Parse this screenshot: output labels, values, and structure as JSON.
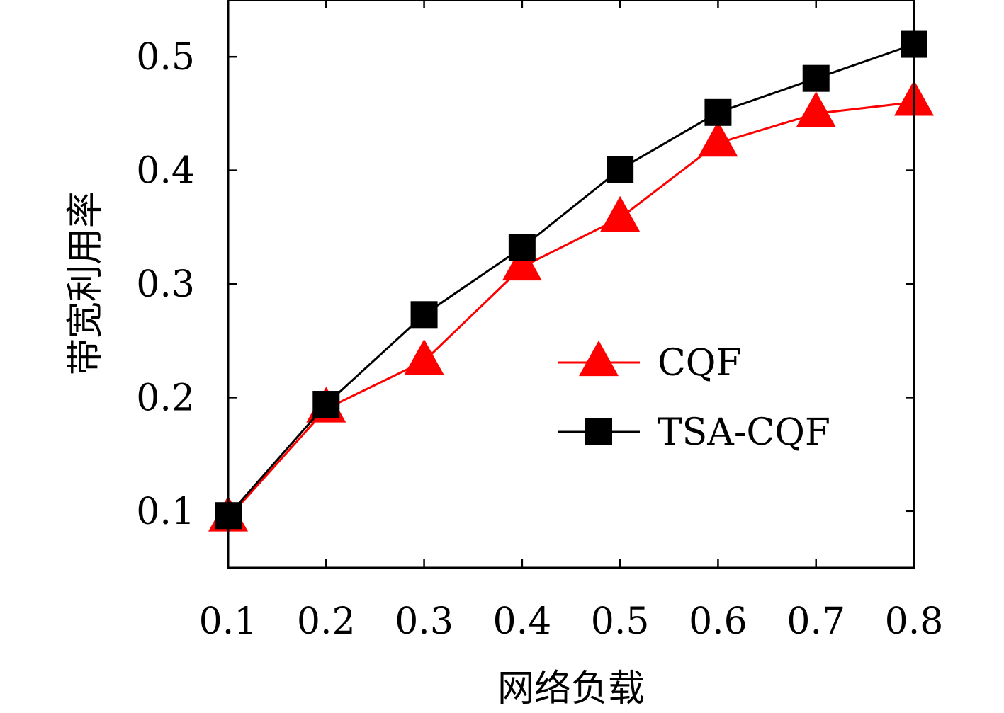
{
  "chart_data": {
    "type": "line",
    "xlabel": "网络负载",
    "ylabel": "带宽利用率",
    "x": [
      0.1,
      0.2,
      0.3,
      0.4,
      0.5,
      0.6,
      0.7,
      0.8
    ],
    "xlim": [
      0.1,
      0.8
    ],
    "ylim": [
      0.05,
      0.55
    ],
    "xticks": [
      "0.1",
      "0.2",
      "0.3",
      "0.4",
      "0.5",
      "0.6",
      "0.7",
      "0.8"
    ],
    "yticks": [
      "0.1",
      "0.2",
      "0.3",
      "0.4",
      "0.5"
    ],
    "ytick_values": [
      0.1,
      0.2,
      0.3,
      0.4,
      0.5
    ],
    "grid": false,
    "legend_position": "center-right",
    "series": [
      {
        "name": "CQF",
        "color": "#ff0000",
        "marker": "triangle",
        "values": [
          0.094,
          0.19,
          0.232,
          0.315,
          0.358,
          0.424,
          0.45,
          0.46
        ]
      },
      {
        "name": "TSA-CQF",
        "color": "#000000",
        "marker": "square",
        "values": [
          0.096,
          0.194,
          0.273,
          0.332,
          0.401,
          0.451,
          0.481,
          0.511
        ]
      }
    ]
  }
}
